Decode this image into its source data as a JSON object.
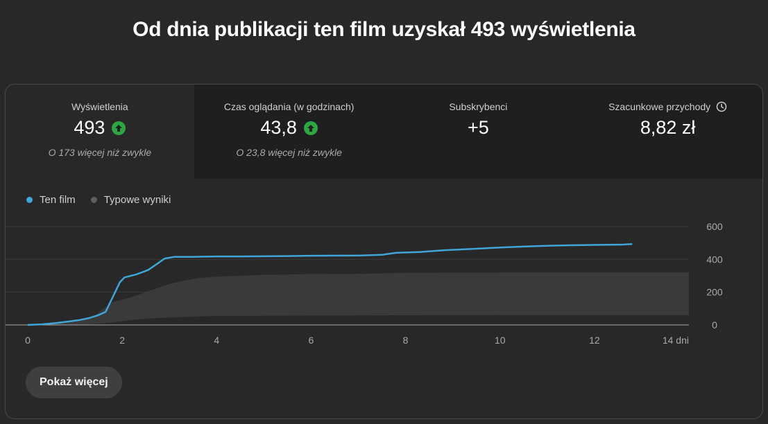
{
  "title": "Od dnia publikacji ten film uzyskał 493 wyświetlenia",
  "metrics": [
    {
      "label": "Wyświetlenia",
      "value": "493",
      "trend": "up",
      "sub": "O 173 więcej niż zwykle"
    },
    {
      "label": "Czas oglądania (w godzinach)",
      "value": "43,8",
      "trend": "up",
      "sub": "O 23,8 więcej niż zwykle"
    },
    {
      "label": "Subskrybenci",
      "value": "+5"
    },
    {
      "label": "Szacunkowe przychody",
      "value": "8,82 zł",
      "icon": "clock-icon"
    }
  ],
  "legend": {
    "this_video": "Ten film",
    "typical": "Typowe wyniki"
  },
  "colors": {
    "this_video": "#3ea6d8",
    "typical_band": "#3a3a3a",
    "trend_up": "#2ba640"
  },
  "chart_data": {
    "type": "line",
    "xlim": [
      0,
      14
    ],
    "ylim": [
      0,
      600
    ],
    "x_ticks": [
      "0",
      "2",
      "4",
      "6",
      "8",
      "10",
      "12",
      "14 dni"
    ],
    "y_ticks": [
      "600",
      "400",
      "200",
      "0"
    ],
    "series": [
      {
        "name": "Ten film",
        "x": [
          0,
          0.3,
          0.6,
          0.9,
          1.1,
          1.3,
          1.5,
          1.65,
          1.8,
          1.95,
          2.05,
          2.3,
          2.55,
          2.75,
          2.9,
          3.1,
          3.5,
          4.0,
          4.5,
          5.5,
          6.0,
          7.0,
          7.5,
          7.8,
          8.3,
          8.8,
          9.5,
          10.0,
          10.5,
          11.0,
          11.5,
          12.0,
          12.6,
          12.8
        ],
        "y": [
          0,
          4,
          12,
          22,
          30,
          42,
          60,
          80,
          170,
          260,
          290,
          308,
          335,
          375,
          405,
          415,
          415,
          418,
          418,
          420,
          422,
          423,
          428,
          440,
          445,
          455,
          465,
          472,
          478,
          483,
          486,
          488,
          490,
          493
        ]
      },
      {
        "name": "Typowe wyniki",
        "band": true,
        "x": [
          0,
          1.0,
          1.4,
          1.8,
          2.2,
          2.6,
          3.0,
          3.3,
          3.6,
          4.0,
          5.0,
          6.0,
          7.0,
          8.0,
          10.0,
          12.0,
          14.0
        ],
        "lower": [
          0,
          2,
          5,
          15,
          30,
          40,
          45,
          48,
          52,
          55,
          56,
          57,
          58,
          59,
          60,
          60,
          60
        ],
        "upper": [
          0,
          20,
          55,
          140,
          170,
          210,
          250,
          270,
          285,
          295,
          305,
          310,
          312,
          318,
          320,
          320,
          320
        ]
      }
    ]
  },
  "button": {
    "more": "Pokaż więcej"
  }
}
